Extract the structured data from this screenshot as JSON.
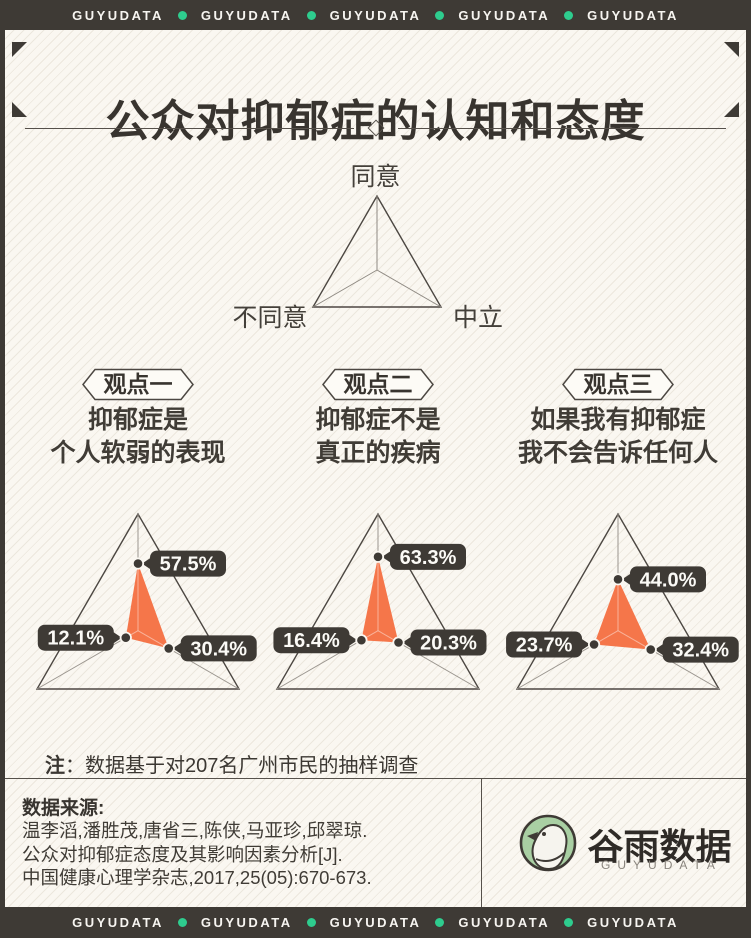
{
  "brand": {
    "wordmark": "GUYUDATA",
    "ticker_repeat": 5,
    "dot_color": "#2ecc8e"
  },
  "header": {
    "title": "公众对抑郁症的认知和态度"
  },
  "legend": {
    "axis_top": "同意",
    "axis_left": "不同意",
    "axis_right": "中立"
  },
  "viewpoints": [
    {
      "badge": "观点一",
      "desc_lines": [
        "抑郁症是",
        "个人软弱的表现"
      ]
    },
    {
      "badge": "观点二",
      "desc_lines": [
        "抑郁症不是",
        "真正的疾病"
      ]
    },
    {
      "badge": "观点三",
      "desc_lines": [
        "如果我有抑郁症",
        "我不会告诉任何人"
      ]
    }
  ],
  "chart_data": {
    "type": "radar",
    "axes": [
      "同意",
      "不同意",
      "中立"
    ],
    "unit": "%",
    "range": [
      0,
      100
    ],
    "fill_color": "#f5764a",
    "series": [
      {
        "name": "观点一 抑郁症是个人软弱的表现",
        "values": [
          57.5,
          12.1,
          30.4
        ]
      },
      {
        "name": "观点二 抑郁症不是真正的疾病",
        "values": [
          63.3,
          16.4,
          20.3
        ]
      },
      {
        "name": "观点三 如果我有抑郁症我不会告诉任何人",
        "values": [
          44.0,
          23.7,
          32.4
        ]
      }
    ]
  },
  "note": {
    "label": "注",
    "separator": "：",
    "text": "数据基于对207名广州市民的抽样调查"
  },
  "footer": {
    "source_label": "数据来源:",
    "source_lines": [
      "温李滔,潘胜茂,唐省三,陈侠,马亚珍,邱翠琼.",
      "公众对抑郁症态度及其影响因素分析[J].",
      "中国健康心理学杂志,2017,25(05):670-673."
    ],
    "logo_cn": "谷雨数据",
    "logo_en": "GUYUDATA"
  },
  "colors": {
    "bar_bg": "#3e3a35",
    "accent_green": "#2ecc8e",
    "accent_orange": "#f5764a",
    "canvas": "#faf7f1",
    "logo_green": "#a9cfa3"
  }
}
